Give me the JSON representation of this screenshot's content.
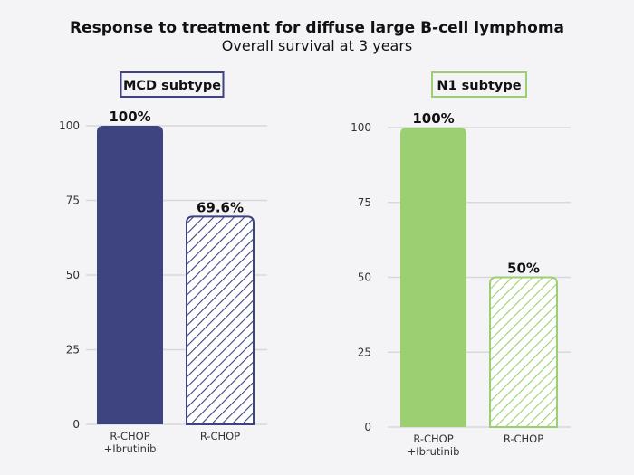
{
  "title": "Response to treatment for diffuse large B-cell lymphoma",
  "subtitle": "Overall survival at 3 years",
  "chart_data": [
    {
      "type": "bar",
      "title": "MCD subtype",
      "categories": [
        [
          "R-CHOP",
          "+Ibrutinib"
        ],
        [
          "R-CHOP"
        ]
      ],
      "values": [
        100,
        69.6
      ],
      "data_labels": [
        "100%",
        "69.6%"
      ],
      "yticks": [
        "0",
        "25",
        "50",
        "75",
        "100"
      ],
      "ylim": [
        0,
        100
      ],
      "grid": true,
      "color": "#3d4480",
      "fill_styles": [
        "solid",
        "hatched"
      ]
    },
    {
      "type": "bar",
      "title": "N1 subtype",
      "categories": [
        [
          "R-CHOP",
          "+Ibrutinib"
        ],
        [
          "R-CHOP"
        ]
      ],
      "values": [
        100,
        50
      ],
      "data_labels": [
        "100%",
        "50%"
      ],
      "yticks": [
        "0",
        "25",
        "50",
        "75",
        "100"
      ],
      "ylim": [
        0,
        100
      ],
      "grid": true,
      "color": "#9ccf72",
      "fill_styles": [
        "solid",
        "hatched"
      ]
    }
  ]
}
